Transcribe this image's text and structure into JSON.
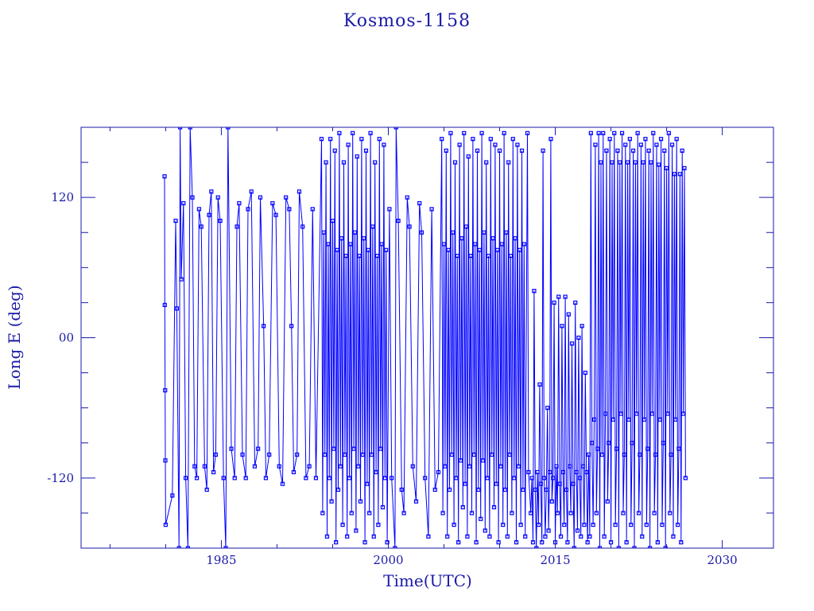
{
  "chart_data": {
    "type": "line",
    "title": "Kosmos-1158",
    "xlabel": "Time(UTC)",
    "ylabel": "Long E (deg)",
    "xlim": [
      1972.4,
      2034.6
    ],
    "ylim": [
      -180,
      180
    ],
    "xticks": [
      {
        "value": 1985,
        "label": "1985"
      },
      {
        "value": 2000,
        "label": "2000"
      },
      {
        "value": 2015,
        "label": "2015"
      },
      {
        "value": 2030,
        "label": "2030"
      }
    ],
    "yticks": [
      {
        "value": 120,
        "label": "120"
      },
      {
        "value": 0,
        "label": "00"
      },
      {
        "value": -120,
        "label": "-120"
      }
    ],
    "grid": false,
    "markers": "square",
    "colors": {
      "series": "#0000ff",
      "axes": "#1a1aa8"
    },
    "points": [
      [
        1979.9,
        138
      ],
      [
        1979.92,
        28
      ],
      [
        1979.95,
        -45
      ],
      [
        1979.97,
        -105
      ],
      [
        1980.0,
        -160
      ],
      [
        1980.6,
        -135
      ],
      [
        1980.9,
        100
      ],
      [
        1981.0,
        25
      ],
      [
        1981.2,
        -180
      ],
      [
        1981.3,
        180
      ],
      [
        1981.4,
        50
      ],
      [
        1981.6,
        115
      ],
      [
        1981.8,
        -120
      ],
      [
        1982.0,
        -180
      ],
      [
        1982.2,
        180
      ],
      [
        1982.4,
        120
      ],
      [
        1982.6,
        -110
      ],
      [
        1982.8,
        -120
      ],
      [
        1983.0,
        110
      ],
      [
        1983.2,
        95
      ],
      [
        1983.5,
        -110
      ],
      [
        1983.7,
        -130
      ],
      [
        1983.9,
        105
      ],
      [
        1984.1,
        125
      ],
      [
        1984.3,
        -115
      ],
      [
        1984.5,
        -100
      ],
      [
        1984.7,
        120
      ],
      [
        1984.9,
        100
      ],
      [
        1985.2,
        -120
      ],
      [
        1985.4,
        -180
      ],
      [
        1985.6,
        180
      ],
      [
        1985.9,
        -95
      ],
      [
        1986.2,
        -120
      ],
      [
        1986.4,
        95
      ],
      [
        1986.6,
        115
      ],
      [
        1986.9,
        -100
      ],
      [
        1987.2,
        -120
      ],
      [
        1987.4,
        110
      ],
      [
        1987.7,
        125
      ],
      [
        1988.0,
        -110
      ],
      [
        1988.3,
        -95
      ],
      [
        1988.5,
        120
      ],
      [
        1988.8,
        10
      ],
      [
        1989.0,
        -120
      ],
      [
        1989.3,
        -100
      ],
      [
        1989.6,
        115
      ],
      [
        1989.9,
        105
      ],
      [
        1990.2,
        -110
      ],
      [
        1990.5,
        -125
      ],
      [
        1990.8,
        120
      ],
      [
        1991.1,
        110
      ],
      [
        1991.3,
        10
      ],
      [
        1991.5,
        -115
      ],
      [
        1991.8,
        -100
      ],
      [
        1992.0,
        125
      ],
      [
        1992.3,
        95
      ],
      [
        1992.6,
        -120
      ],
      [
        1992.9,
        -110
      ],
      [
        1993.2,
        110
      ],
      [
        1993.5,
        -120
      ],
      [
        1994.0,
        170
      ],
      [
        1994.1,
        -150
      ],
      [
        1994.2,
        90
      ],
      [
        1994.3,
        -100
      ],
      [
        1994.4,
        150
      ],
      [
        1994.5,
        -170
      ],
      [
        1994.6,
        80
      ],
      [
        1994.7,
        -120
      ],
      [
        1994.8,
        170
      ],
      [
        1994.9,
        -140
      ],
      [
        1995.0,
        100
      ],
      [
        1995.1,
        -95
      ],
      [
        1995.2,
        160
      ],
      [
        1995.3,
        -175
      ],
      [
        1995.4,
        75
      ],
      [
        1995.5,
        -130
      ],
      [
        1995.6,
        175
      ],
      [
        1995.7,
        -110
      ],
      [
        1995.8,
        85
      ],
      [
        1995.9,
        -160
      ],
      [
        1996.0,
        150
      ],
      [
        1996.1,
        -100
      ],
      [
        1996.2,
        70
      ],
      [
        1996.3,
        -170
      ],
      [
        1996.4,
        165
      ],
      [
        1996.5,
        -120
      ],
      [
        1996.6,
        80
      ],
      [
        1996.7,
        -150
      ],
      [
        1996.8,
        175
      ],
      [
        1996.9,
        -95
      ],
      [
        1997.0,
        90
      ],
      [
        1997.1,
        -165
      ],
      [
        1997.2,
        155
      ],
      [
        1997.3,
        -110
      ],
      [
        1997.4,
        70
      ],
      [
        1997.5,
        -140
      ],
      [
        1997.6,
        170
      ],
      [
        1997.7,
        -100
      ],
      [
        1997.8,
        85
      ],
      [
        1997.9,
        -175
      ],
      [
        1998.0,
        160
      ],
      [
        1998.1,
        -125
      ],
      [
        1998.2,
        75
      ],
      [
        1998.3,
        -150
      ],
      [
        1998.4,
        175
      ],
      [
        1998.5,
        -100
      ],
      [
        1998.6,
        95
      ],
      [
        1998.7,
        -170
      ],
      [
        1998.8,
        150
      ],
      [
        1998.9,
        -115
      ],
      [
        1999.0,
        70
      ],
      [
        1999.1,
        -160
      ],
      [
        1999.2,
        170
      ],
      [
        1999.3,
        -95
      ],
      [
        1999.4,
        80
      ],
      [
        1999.5,
        -145
      ],
      [
        1999.6,
        165
      ],
      [
        1999.7,
        -120
      ],
      [
        1999.8,
        75
      ],
      [
        1999.9,
        -175
      ],
      [
        2000.1,
        110
      ],
      [
        2000.3,
        -120
      ],
      [
        2000.6,
        -180
      ],
      [
        2000.7,
        180
      ],
      [
        2000.9,
        100
      ],
      [
        2001.2,
        -130
      ],
      [
        2001.4,
        -150
      ],
      [
        2001.7,
        120
      ],
      [
        2001.9,
        95
      ],
      [
        2002.2,
        -110
      ],
      [
        2002.5,
        -140
      ],
      [
        2002.8,
        115
      ],
      [
        2003.0,
        90
      ],
      [
        2003.3,
        -120
      ],
      [
        2003.6,
        -170
      ],
      [
        2003.9,
        110
      ],
      [
        2004.2,
        -130
      ],
      [
        2004.5,
        -115
      ],
      [
        2004.8,
        170
      ],
      [
        2004.9,
        -150
      ],
      [
        2005.0,
        80
      ],
      [
        2005.1,
        -110
      ],
      [
        2005.2,
        160
      ],
      [
        2005.3,
        -170
      ],
      [
        2005.4,
        75
      ],
      [
        2005.5,
        -130
      ],
      [
        2005.6,
        175
      ],
      [
        2005.7,
        -100
      ],
      [
        2005.8,
        90
      ],
      [
        2005.9,
        -160
      ],
      [
        2006.0,
        150
      ],
      [
        2006.1,
        -120
      ],
      [
        2006.2,
        70
      ],
      [
        2006.3,
        -175
      ],
      [
        2006.4,
        165
      ],
      [
        2006.5,
        -105
      ],
      [
        2006.6,
        85
      ],
      [
        2006.7,
        -145
      ],
      [
        2006.8,
        175
      ],
      [
        2006.9,
        -125
      ],
      [
        2007.0,
        95
      ],
      [
        2007.1,
        -170
      ],
      [
        2007.2,
        155
      ],
      [
        2007.3,
        -110
      ],
      [
        2007.4,
        70
      ],
      [
        2007.5,
        -150
      ],
      [
        2007.6,
        170
      ],
      [
        2007.7,
        -100
      ],
      [
        2007.8,
        80
      ],
      [
        2007.9,
        -175
      ],
      [
        2008.0,
        160
      ],
      [
        2008.1,
        -130
      ],
      [
        2008.2,
        75
      ],
      [
        2008.3,
        -155
      ],
      [
        2008.4,
        175
      ],
      [
        2008.5,
        -105
      ],
      [
        2008.6,
        90
      ],
      [
        2008.7,
        -165
      ],
      [
        2008.8,
        150
      ],
      [
        2008.9,
        -120
      ],
      [
        2009.0,
        70
      ],
      [
        2009.1,
        -170
      ],
      [
        2009.2,
        170
      ],
      [
        2009.3,
        -100
      ],
      [
        2009.4,
        85
      ],
      [
        2009.5,
        -145
      ],
      [
        2009.6,
        165
      ],
      [
        2009.7,
        -125
      ],
      [
        2009.8,
        75
      ],
      [
        2009.9,
        -175
      ],
      [
        2010.0,
        160
      ],
      [
        2010.1,
        -110
      ],
      [
        2010.2,
        80
      ],
      [
        2010.3,
        -160
      ],
      [
        2010.4,
        175
      ],
      [
        2010.5,
        -130
      ],
      [
        2010.6,
        90
      ],
      [
        2010.7,
        -170
      ],
      [
        2010.8,
        150
      ],
      [
        2010.9,
        -100
      ],
      [
        2011.0,
        70
      ],
      [
        2011.1,
        -150
      ],
      [
        2011.2,
        170
      ],
      [
        2011.3,
        -120
      ],
      [
        2011.4,
        85
      ],
      [
        2011.5,
        -175
      ],
      [
        2011.6,
        165
      ],
      [
        2011.7,
        -110
      ],
      [
        2011.8,
        75
      ],
      [
        2011.9,
        -160
      ],
      [
        2012.0,
        160
      ],
      [
        2012.1,
        -130
      ],
      [
        2012.2,
        80
      ],
      [
        2012.3,
        -170
      ],
      [
        2012.5,
        175
      ],
      [
        2012.6,
        -115
      ],
      [
        2012.8,
        -150
      ],
      [
        2012.9,
        -120
      ],
      [
        2013.0,
        -175
      ],
      [
        2013.1,
        40
      ],
      [
        2013.2,
        -130
      ],
      [
        2013.3,
        -180
      ],
      [
        2013.4,
        -115
      ],
      [
        2013.5,
        -160
      ],
      [
        2013.6,
        -40
      ],
      [
        2013.7,
        -125
      ],
      [
        2013.8,
        -175
      ],
      [
        2013.9,
        160
      ],
      [
        2014.0,
        -120
      ],
      [
        2014.1,
        -170
      ],
      [
        2014.2,
        -130
      ],
      [
        2014.3,
        -60
      ],
      [
        2014.4,
        -165
      ],
      [
        2014.5,
        -115
      ],
      [
        2014.6,
        170
      ],
      [
        2014.7,
        -140
      ],
      [
        2014.8,
        -120
      ],
      [
        2014.9,
        30
      ],
      [
        2015.0,
        -175
      ],
      [
        2015.1,
        -110
      ],
      [
        2015.2,
        -150
      ],
      [
        2015.3,
        35
      ],
      [
        2015.4,
        -125
      ],
      [
        2015.5,
        -170
      ],
      [
        2015.6,
        10
      ],
      [
        2015.7,
        -115
      ],
      [
        2015.8,
        -160
      ],
      [
        2015.9,
        35
      ],
      [
        2016.0,
        -130
      ],
      [
        2016.1,
        -175
      ],
      [
        2016.2,
        20
      ],
      [
        2016.3,
        -110
      ],
      [
        2016.4,
        -150
      ],
      [
        2016.5,
        -5
      ],
      [
        2016.6,
        -125
      ],
      [
        2016.7,
        -180
      ],
      [
        2016.8,
        30
      ],
      [
        2016.9,
        -115
      ],
      [
        2017.0,
        -165
      ],
      [
        2017.1,
        0
      ],
      [
        2017.2,
        -120
      ],
      [
        2017.3,
        -170
      ],
      [
        2017.4,
        10
      ],
      [
        2017.5,
        -110
      ],
      [
        2017.6,
        -160
      ],
      [
        2017.7,
        -30
      ],
      [
        2017.8,
        -115
      ],
      [
        2017.9,
        -175
      ],
      [
        2018.0,
        -100
      ],
      [
        2018.1,
        -170
      ],
      [
        2018.2,
        175
      ],
      [
        2018.3,
        -90
      ],
      [
        2018.4,
        -160
      ],
      [
        2018.5,
        -70
      ],
      [
        2018.6,
        165
      ],
      [
        2018.7,
        -150
      ],
      [
        2018.8,
        -95
      ],
      [
        2018.9,
        175
      ],
      [
        2019.0,
        -180
      ],
      [
        2019.1,
        150
      ],
      [
        2019.2,
        -100
      ],
      [
        2019.3,
        175
      ],
      [
        2019.4,
        -170
      ],
      [
        2019.5,
        -65
      ],
      [
        2019.6,
        160
      ],
      [
        2019.7,
        -140
      ],
      [
        2019.8,
        -90
      ],
      [
        2019.9,
        170
      ],
      [
        2020.0,
        -175
      ],
      [
        2020.1,
        150
      ],
      [
        2020.2,
        -70
      ],
      [
        2020.3,
        175
      ],
      [
        2020.4,
        -160
      ],
      [
        2020.5,
        -95
      ],
      [
        2020.6,
        160
      ],
      [
        2020.7,
        -180
      ],
      [
        2020.8,
        150
      ],
      [
        2020.9,
        -65
      ],
      [
        2021.0,
        175
      ],
      [
        2021.1,
        -150
      ],
      [
        2021.2,
        -100
      ],
      [
        2021.3,
        165
      ],
      [
        2021.4,
        -175
      ],
      [
        2021.5,
        150
      ],
      [
        2021.6,
        -70
      ],
      [
        2021.7,
        170
      ],
      [
        2021.8,
        -160
      ],
      [
        2021.9,
        -90
      ],
      [
        2022.0,
        160
      ],
      [
        2022.1,
        -180
      ],
      [
        2022.2,
        150
      ],
      [
        2022.3,
        -65
      ],
      [
        2022.4,
        175
      ],
      [
        2022.5,
        -150
      ],
      [
        2022.6,
        -100
      ],
      [
        2022.7,
        165
      ],
      [
        2022.8,
        -170
      ],
      [
        2022.9,
        150
      ],
      [
        2023.0,
        -70
      ],
      [
        2023.1,
        170
      ],
      [
        2023.2,
        -160
      ],
      [
        2023.3,
        -95
      ],
      [
        2023.4,
        160
      ],
      [
        2023.5,
        -180
      ],
      [
        2023.6,
        150
      ],
      [
        2023.7,
        -65
      ],
      [
        2023.8,
        175
      ],
      [
        2023.9,
        -150
      ],
      [
        2024.0,
        -100
      ],
      [
        2024.1,
        165
      ],
      [
        2024.2,
        -175
      ],
      [
        2024.3,
        148
      ],
      [
        2024.4,
        -70
      ],
      [
        2024.5,
        170
      ],
      [
        2024.6,
        -160
      ],
      [
        2024.7,
        -90
      ],
      [
        2024.8,
        160
      ],
      [
        2024.9,
        -180
      ],
      [
        2025.0,
        145
      ],
      [
        2025.1,
        -65
      ],
      [
        2025.2,
        175
      ],
      [
        2025.3,
        -150
      ],
      [
        2025.4,
        -100
      ],
      [
        2025.5,
        165
      ],
      [
        2025.6,
        -170
      ],
      [
        2025.7,
        140
      ],
      [
        2025.8,
        -70
      ],
      [
        2025.9,
        170
      ],
      [
        2026.0,
        -160
      ],
      [
        2026.1,
        -95
      ],
      [
        2026.2,
        140
      ],
      [
        2026.3,
        -175
      ],
      [
        2026.4,
        160
      ],
      [
        2026.5,
        -65
      ],
      [
        2026.6,
        145
      ],
      [
        2026.7,
        -120
      ]
    ]
  }
}
